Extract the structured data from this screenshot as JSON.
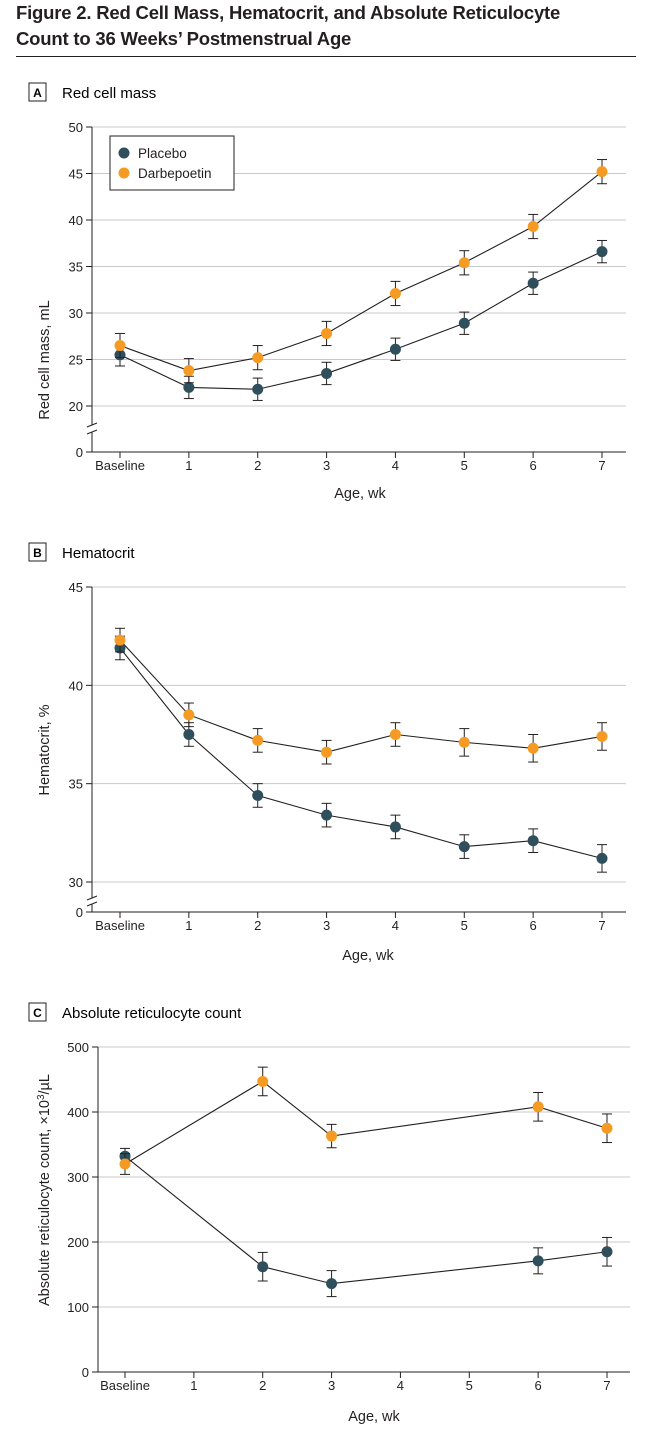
{
  "figure": {
    "title_line1": "Figure 2. Red Cell Mass, Hematocrit, and Absolute Reticulocyte",
    "title_line2": "Count to 36 Weeks’ Postmenstrual Age"
  },
  "colors": {
    "placebo": "#2f4f5c",
    "darbepoetin": "#f59a23",
    "grid": "#c9c9c9",
    "axis": "#231f20"
  },
  "legend": {
    "placebo": "Placebo",
    "darbepoetin": "Darbepoetin"
  },
  "chart_data": [
    {
      "type": "line",
      "panel_letter": "A",
      "title": "Red cell mass",
      "xlabel": "Age, wk",
      "ylabel": "Red cell mass, mL",
      "categories": [
        "Baseline",
        "1",
        "2",
        "3",
        "4",
        "5",
        "6",
        "7"
      ],
      "yticks": [
        "0",
        "20",
        "25",
        "30",
        "35",
        "40",
        "45",
        "50"
      ],
      "ylim": [
        0,
        50
      ],
      "axis_break": true,
      "grid": true,
      "legend_position": "top-left",
      "series": [
        {
          "name": "Placebo",
          "color": "#2f4f5c",
          "values": [
            25.5,
            22.0,
            21.8,
            23.5,
            26.1,
            28.9,
            33.2,
            36.6
          ],
          "err": [
            1.2,
            1.2,
            1.2,
            1.2,
            1.2,
            1.2,
            1.2,
            1.2
          ]
        },
        {
          "name": "Darbepoetin",
          "color": "#f59a23",
          "values": [
            26.5,
            23.8,
            25.2,
            27.8,
            32.1,
            35.4,
            39.3,
            45.2
          ],
          "err": [
            1.3,
            1.3,
            1.3,
            1.3,
            1.3,
            1.3,
            1.3,
            1.3
          ]
        }
      ]
    },
    {
      "type": "line",
      "panel_letter": "B",
      "title": "Hematocrit",
      "xlabel": "Age, wk",
      "ylabel": "Hematocrit, %",
      "categories": [
        "Baseline",
        "1",
        "2",
        "3",
        "4",
        "5",
        "6",
        "7"
      ],
      "yticks": [
        "0",
        "30",
        "35",
        "40",
        "45"
      ],
      "ylim": [
        0,
        45
      ],
      "axis_break": true,
      "grid": true,
      "series": [
        {
          "name": "Placebo",
          "color": "#2f4f5c",
          "values": [
            41.9,
            37.5,
            34.4,
            33.4,
            32.8,
            31.8,
            32.1,
            31.2
          ],
          "err": [
            0.6,
            0.6,
            0.6,
            0.6,
            0.6,
            0.6,
            0.6,
            0.7
          ]
        },
        {
          "name": "Darbepoetin",
          "color": "#f59a23",
          "values": [
            42.3,
            38.5,
            37.2,
            36.6,
            37.5,
            37.1,
            36.8,
            37.4
          ],
          "err": [
            0.6,
            0.6,
            0.6,
            0.6,
            0.6,
            0.7,
            0.7,
            0.7
          ]
        }
      ]
    },
    {
      "type": "line",
      "panel_letter": "C",
      "title": "Absolute reticulocyte count",
      "xlabel": "Age, wk",
      "ylabel_main": "Absolute reticulocyte count, ×10",
      "ylabel_sup": "3",
      "ylabel_tail": "/µL",
      "categories": [
        "Baseline",
        "1",
        "2",
        "3",
        "4",
        "5",
        "6",
        "7"
      ],
      "yticks": [
        "0",
        "100",
        "200",
        "300",
        "400",
        "500"
      ],
      "ylim": [
        0,
        500
      ],
      "grid": true,
      "series": [
        {
          "name": "Placebo",
          "color": "#2f4f5c",
          "x": [
            "Baseline",
            "2",
            "3",
            "6",
            "7"
          ],
          "values": [
            332,
            162,
            136,
            171,
            185
          ],
          "err": [
            12,
            22,
            20,
            20,
            22
          ]
        },
        {
          "name": "Darbepoetin",
          "color": "#f59a23",
          "x": [
            "Baseline",
            "2",
            "3",
            "6",
            "7"
          ],
          "values": [
            320,
            447,
            363,
            408,
            375
          ],
          "err": [
            16,
            22,
            18,
            22,
            22
          ]
        }
      ]
    }
  ]
}
